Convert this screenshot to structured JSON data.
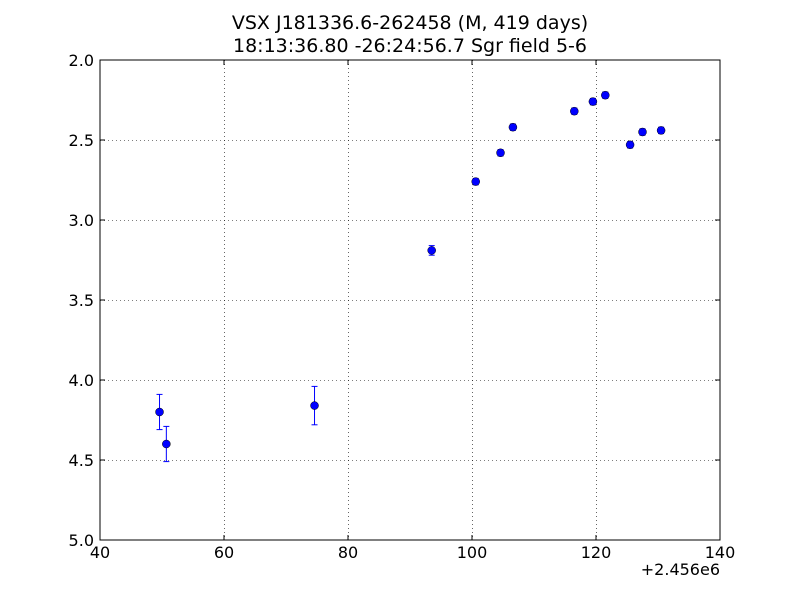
{
  "chart_data": {
    "type": "scatter",
    "title": "VSX J181336.6-262458  (M, 419 days)",
    "subtitle": "18:13:36.80 -26:24:56.7 Sgr field 5-6",
    "xlabel": "",
    "ylabel": "",
    "x_offset_label": "+2.456e6",
    "xlim": [
      40,
      140
    ],
    "ylim": [
      2.0,
      5.0
    ],
    "y_inverted": true,
    "grid": true,
    "x_ticks": [
      40,
      60,
      80,
      100,
      120,
      140
    ],
    "x_tick_labels": [
      "40",
      "60",
      "80",
      "100",
      "120",
      "140"
    ],
    "y_ticks": [
      2.0,
      2.5,
      3.0,
      3.5,
      4.0,
      4.5,
      5.0
    ],
    "y_tick_labels": [
      "2.0",
      "2.5",
      "3.0",
      "3.5",
      "4.0",
      "4.5",
      "5.0"
    ],
    "series": [
      {
        "color": "#0000ff",
        "marker": "circle",
        "points": [
          {
            "x": 49.6,
            "y": 4.2,
            "err": 0.11
          },
          {
            "x": 50.7,
            "y": 4.4,
            "err": 0.11
          },
          {
            "x": 74.6,
            "y": 4.16,
            "err": 0.12
          },
          {
            "x": 93.5,
            "y": 3.19,
            "err": 0.03
          },
          {
            "x": 100.6,
            "y": 2.76,
            "err": 0.02
          },
          {
            "x": 104.6,
            "y": 2.58,
            "err": 0.02
          },
          {
            "x": 106.6,
            "y": 2.42,
            "err": 0.02
          },
          {
            "x": 116.5,
            "y": 2.32,
            "err": 0.02
          },
          {
            "x": 119.5,
            "y": 2.26,
            "err": 0.02
          },
          {
            "x": 121.5,
            "y": 2.22,
            "err": 0.02
          },
          {
            "x": 125.5,
            "y": 2.53,
            "err": 0.02
          },
          {
            "x": 127.5,
            "y": 2.45,
            "err": 0.02
          },
          {
            "x": 130.5,
            "y": 2.44,
            "err": 0.02
          }
        ]
      }
    ]
  }
}
